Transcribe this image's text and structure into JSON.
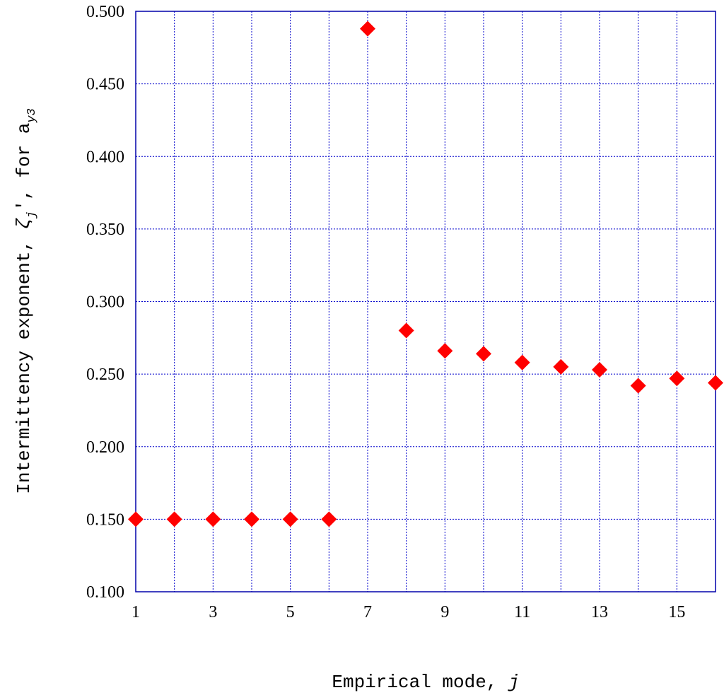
{
  "chart_data": {
    "type": "scatter",
    "xlabel": "Empirical mode, j",
    "xlabel_parts": {
      "text": "Empirical mode, ",
      "var": "j"
    },
    "ylabel": "Intermittency exponent, ζj', for ay3",
    "ylabel_parts": {
      "text1": "Intermittency exponent, ",
      "zeta": "ζ",
      "zeta_sub": "j",
      "text2": "', for a",
      "a_sub": "y3"
    },
    "xlim": [
      1,
      16
    ],
    "ylim": [
      0.1,
      0.5
    ],
    "x_ticks": [
      1,
      3,
      5,
      7,
      9,
      11,
      13,
      15
    ],
    "x_tick_labels": [
      "1",
      "3",
      "5",
      "7",
      "9",
      "11",
      "13",
      "15"
    ],
    "y_ticks": [
      0.1,
      0.15,
      0.2,
      0.25,
      0.3,
      0.35,
      0.4,
      0.45,
      0.5
    ],
    "y_tick_labels": [
      "0.100",
      "0.150",
      "0.200",
      "0.250",
      "0.300",
      "0.350",
      "0.400",
      "0.450",
      "0.500"
    ],
    "x_grid": [
      1,
      2,
      3,
      4,
      5,
      6,
      7,
      8,
      9,
      10,
      11,
      12,
      13,
      14,
      15,
      16
    ],
    "grid": true,
    "marker": "diamond",
    "colors": {
      "marker": "#ff0000",
      "grid": "#0000cc",
      "frame": "#0000aa"
    },
    "series": [
      {
        "x": [
          1,
          2,
          3,
          4,
          5,
          6,
          7,
          8,
          9,
          10,
          11,
          12,
          13,
          14,
          15,
          16
        ],
        "y": [
          0.15,
          0.15,
          0.15,
          0.15,
          0.15,
          0.15,
          0.488,
          0.28,
          0.266,
          0.264,
          0.258,
          0.255,
          0.253,
          0.242,
          0.247,
          0.244
        ]
      }
    ]
  }
}
